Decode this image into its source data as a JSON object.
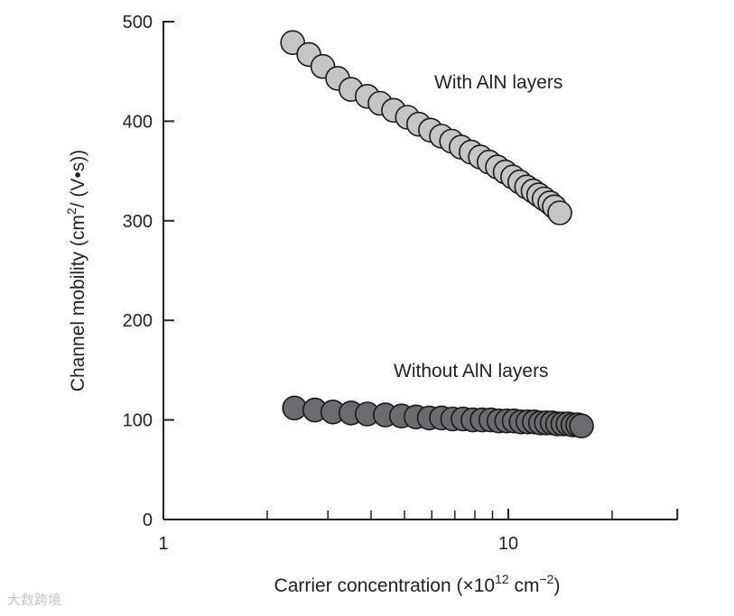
{
  "chart_data": {
    "type": "scatter",
    "title": "",
    "xlabel": "Carrier concentration (×10",
    "xlabel_sup": "12",
    "xlabel_mid": " cm",
    "xlabel_sup2": "−2",
    "xlabel_end": ")",
    "ylabel": "Channel mobility (cm",
    "ylabel_sup": "2",
    "ylabel_end": "/ (V•s))",
    "xscale": "log",
    "xlim": [
      1,
      30
    ],
    "ylim": [
      0,
      500
    ],
    "x_ticks_major": [
      1,
      10
    ],
    "x_tick_labels": [
      "1",
      "10"
    ],
    "x_ticks_minor": [
      2,
      3,
      4,
      5,
      6,
      7,
      8,
      9,
      20
    ],
    "y_ticks": [
      0,
      100,
      200,
      300,
      400,
      500
    ],
    "y_tick_labels": [
      "0",
      "100",
      "200",
      "300",
      "400",
      "500"
    ],
    "grid": false,
    "legend": "none",
    "series": [
      {
        "name": "With AlN layers",
        "color": "#c4c5c7",
        "x": [
          2.37,
          2.64,
          2.9,
          3.2,
          3.5,
          3.9,
          4.25,
          4.65,
          5.1,
          5.5,
          5.95,
          6.4,
          6.85,
          7.3,
          7.8,
          8.3,
          8.8,
          9.3,
          9.8,
          10.3,
          10.8,
          11.3,
          11.8,
          12.25,
          12.7,
          13.2,
          13.6,
          14.1
        ],
        "y": [
          479,
          467,
          455,
          443,
          432,
          425,
          418,
          411,
          404,
          397,
          391,
          385,
          380,
          374,
          369,
          364,
          359,
          354,
          349,
          344,
          339,
          334,
          330,
          326,
          322,
          318,
          314,
          308
        ]
      },
      {
        "name": "Without AlN layers",
        "color": "#6a6b6e",
        "x": [
          2.4,
          2.75,
          3.1,
          3.5,
          3.9,
          4.4,
          4.9,
          5.4,
          5.9,
          6.4,
          6.9,
          7.4,
          7.9,
          8.4,
          8.9,
          9.4,
          9.9,
          10.4,
          10.9,
          11.4,
          11.9,
          12.4,
          12.9,
          13.4,
          13.9,
          14.4,
          14.9,
          15.4,
          15.9,
          16.3
        ],
        "y": [
          112,
          110,
          108,
          107,
          106,
          105,
          104,
          103,
          102,
          102,
          101,
          101,
          100,
          100,
          100,
          99,
          99,
          99,
          98,
          98,
          98,
          97,
          97,
          97,
          96,
          96,
          96,
          95,
          95,
          94
        ]
      }
    ]
  },
  "watermark": "大数跨境"
}
